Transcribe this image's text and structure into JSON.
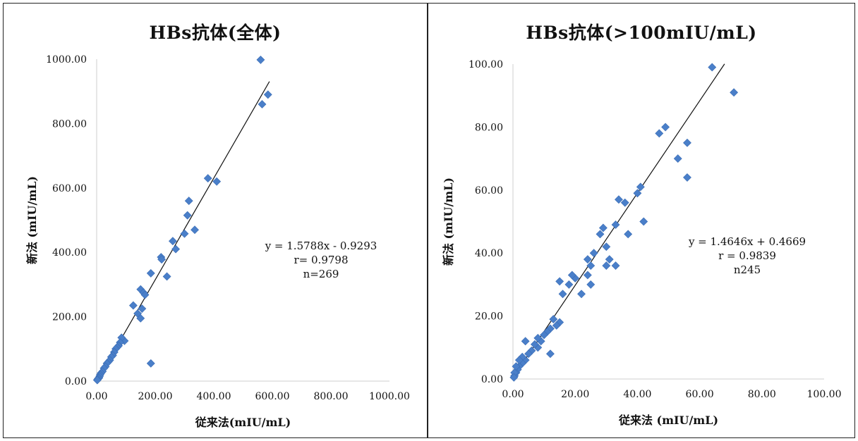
{
  "chart_data": [
    {
      "type": "scatter",
      "title": "HBs抗体(全体)",
      "xlabel": "従来法(mIU/mL)",
      "ylabel": "新法 (mIU/mL)",
      "xlim": [
        0,
        1000
      ],
      "ylim": [
        0,
        1000
      ],
      "xticks": [
        "0.00",
        "200.00",
        "400.00",
        "600.00",
        "800.00",
        "1000.00"
      ],
      "yticks": [
        "0.00",
        "200.00",
        "400.00",
        "600.00",
        "800.00",
        "1000.00"
      ],
      "grid": false,
      "marker_color": "#4a7fc9",
      "trendline": {
        "slope": 1.5788,
        "intercept": -0.9293,
        "x_range": [
          0,
          590
        ]
      },
      "annotation": [
        "y = 1.5788x - 0.9293",
        "r= 0.9798",
        "n=269"
      ],
      "points": [
        [
          560,
          998
        ],
        [
          585,
          890
        ],
        [
          565,
          860
        ],
        [
          380,
          630
        ],
        [
          410,
          620
        ],
        [
          315,
          560
        ],
        [
          310,
          515
        ],
        [
          335,
          470
        ],
        [
          300,
          458
        ],
        [
          260,
          435
        ],
        [
          270,
          410
        ],
        [
          220,
          385
        ],
        [
          222,
          378
        ],
        [
          240,
          325
        ],
        [
          185,
          335
        ],
        [
          150,
          285
        ],
        [
          160,
          275
        ],
        [
          165,
          268
        ],
        [
          125,
          235
        ],
        [
          155,
          225
        ],
        [
          140,
          210
        ],
        [
          150,
          195
        ],
        [
          185,
          55
        ],
        [
          95,
          125
        ],
        [
          85,
          135
        ],
        [
          80,
          120
        ],
        [
          75,
          110
        ],
        [
          70,
          105
        ],
        [
          65,
          100
        ],
        [
          60,
          90
        ],
        [
          55,
          80
        ],
        [
          50,
          75
        ],
        [
          45,
          65
        ],
        [
          40,
          60
        ],
        [
          35,
          55
        ],
        [
          30,
          45
        ],
        [
          25,
          40
        ],
        [
          20,
          30
        ],
        [
          15,
          25
        ],
        [
          12,
          20
        ],
        [
          10,
          15
        ],
        [
          8,
          10
        ],
        [
          5,
          8
        ],
        [
          3,
          5
        ],
        [
          2,
          3
        ]
      ]
    },
    {
      "type": "scatter",
      "title": "HBs抗体(>100mIU/mL)",
      "xlabel": "従来法 (mIU/mL)",
      "ylabel": "新法 (mIU/mL)",
      "xlim": [
        0,
        100
      ],
      "ylim": [
        0,
        100
      ],
      "xticks": [
        "0.00",
        "20.00",
        "40.00",
        "60.00",
        "80.00",
        "100.00"
      ],
      "yticks": [
        "0.00",
        "20.00",
        "40.00",
        "60.00",
        "80.00",
        "100.00"
      ],
      "grid": false,
      "marker_color": "#4a7fc9",
      "trendline": {
        "slope": 1.4646,
        "intercept": 0.4669,
        "x_range": [
          0,
          68
        ]
      },
      "annotation": [
        "y = 1.4646x + 0.4669",
        "r = 0.9839",
        "n245"
      ],
      "points": [
        [
          64,
          99
        ],
        [
          71,
          91
        ],
        [
          49,
          80
        ],
        [
          47,
          78
        ],
        [
          56,
          75
        ],
        [
          53,
          70
        ],
        [
          56,
          64
        ],
        [
          41,
          61
        ],
        [
          40,
          59
        ],
        [
          42,
          50
        ],
        [
          37,
          46
        ],
        [
          34,
          57
        ],
        [
          36,
          56
        ],
        [
          29,
          48
        ],
        [
          28,
          46
        ],
        [
          33,
          49
        ],
        [
          30,
          42
        ],
        [
          31,
          38
        ],
        [
          33,
          36
        ],
        [
          30,
          36
        ],
        [
          26,
          40
        ],
        [
          24,
          38
        ],
        [
          25,
          36
        ],
        [
          24,
          33
        ],
        [
          25,
          30
        ],
        [
          22,
          27
        ],
        [
          20,
          32
        ],
        [
          18,
          30
        ],
        [
          19,
          33
        ],
        [
          16,
          27
        ],
        [
          15,
          31
        ],
        [
          15,
          18
        ],
        [
          14,
          17
        ],
        [
          13,
          19
        ],
        [
          12,
          16
        ],
        [
          11,
          15
        ],
        [
          12,
          8
        ],
        [
          10,
          14
        ],
        [
          9,
          12
        ],
        [
          8,
          13
        ],
        [
          8,
          10
        ],
        [
          7,
          11
        ],
        [
          6,
          9
        ],
        [
          5,
          8
        ],
        [
          4,
          12
        ],
        [
          4,
          6
        ],
        [
          3,
          7
        ],
        [
          3,
          5
        ],
        [
          2,
          4
        ],
        [
          2,
          6
        ],
        [
          1.5,
          3
        ],
        [
          1,
          2
        ],
        [
          1,
          4
        ],
        [
          0.5,
          1
        ],
        [
          0.5,
          2
        ],
        [
          0.3,
          0.5
        ]
      ]
    }
  ]
}
